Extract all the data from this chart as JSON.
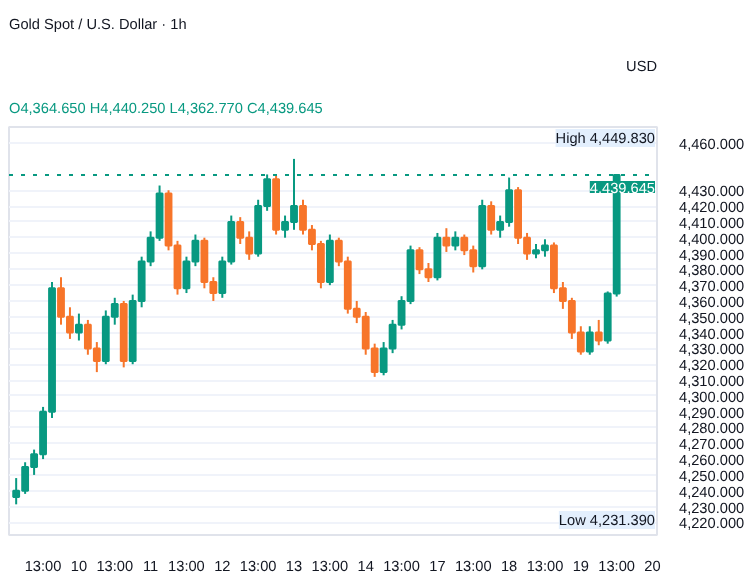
{
  "chart_data": {
    "type": "candlestick",
    "title": "Gold Spot / U.S. Dollar · 1h",
    "subtitle": "O4,364.650 H4,440.250 L4,362.770 C4,439.645",
    "ylabel": "USD",
    "categories": [
      null,
      null,
      null,
      "13:00",
      null,
      null,
      null,
      "10",
      null,
      null,
      null,
      "13:00",
      null,
      null,
      null,
      "11",
      null,
      null,
      null,
      "13:00",
      null,
      null,
      null,
      "12",
      null,
      null,
      null,
      "13:00",
      null,
      null,
      null,
      "13",
      null,
      null,
      null,
      "13:00",
      null,
      null,
      null,
      "14",
      null,
      null,
      null,
      "13:00",
      null,
      null,
      null,
      "17",
      null,
      null,
      null,
      "13:00",
      null,
      null,
      null,
      "18",
      null,
      null,
      null,
      "13:00",
      null,
      null,
      null,
      "19",
      null,
      null,
      null,
      "13:00",
      null,
      null,
      null,
      "20"
    ],
    "ohlc": [
      [
        4236,
        4248,
        4231.39,
        4240
      ],
      [
        4240,
        4258,
        4238,
        4255
      ],
      [
        4255,
        4266,
        4250,
        4263
      ],
      [
        4263,
        4293,
        4260,
        4290
      ],
      [
        4290,
        4372,
        4286,
        4368
      ],
      [
        4368,
        4375,
        4345,
        4350
      ],
      [
        4350,
        4356,
        4336,
        4340
      ],
      [
        4340,
        4352,
        4335,
        4345
      ],
      [
        4345,
        4348,
        4326,
        4330
      ],
      [
        4330,
        4334,
        4315,
        4322
      ],
      [
        4322,
        4354,
        4320,
        4350
      ],
      [
        4350,
        4362,
        4345,
        4358
      ],
      [
        4358,
        4360,
        4318,
        4322
      ],
      [
        4322,
        4364,
        4320,
        4360
      ],
      [
        4360,
        4388,
        4356,
        4385
      ],
      [
        4385,
        4404,
        4382,
        4400
      ],
      [
        4400,
        4433,
        4398,
        4428
      ],
      [
        4428,
        4430,
        4392,
        4395
      ],
      [
        4395,
        4398,
        4364,
        4368
      ],
      [
        4368,
        4388,
        4365,
        4385
      ],
      [
        4385,
        4402,
        4382,
        4398
      ],
      [
        4398,
        4400,
        4368,
        4372
      ],
      [
        4372,
        4375,
        4360,
        4365
      ],
      [
        4365,
        4388,
        4362,
        4385
      ],
      [
        4385,
        4414,
        4383,
        4410
      ],
      [
        4410,
        4413,
        4396,
        4400
      ],
      [
        4400,
        4404,
        4386,
        4390
      ],
      [
        4390,
        4424,
        4388,
        4420
      ],
      [
        4420,
        4440,
        4417,
        4437
      ],
      [
        4437,
        4439,
        4402,
        4405
      ],
      [
        4405,
        4414,
        4400,
        4410
      ],
      [
        4410,
        4449.83,
        4405,
        4420
      ],
      [
        4420,
        4424,
        4402,
        4405
      ],
      [
        4405,
        4408,
        4392,
        4396
      ],
      [
        4396,
        4398,
        4368,
        4372
      ],
      [
        4372,
        4402,
        4370,
        4398
      ],
      [
        4398,
        4400,
        4382,
        4385
      ],
      [
        4385,
        4388,
        4352,
        4355
      ],
      [
        4355,
        4360,
        4346,
        4350
      ],
      [
        4350,
        4353,
        4326,
        4330
      ],
      [
        4330,
        4333,
        4312,
        4315
      ],
      [
        4315,
        4334,
        4313,
        4330
      ],
      [
        4330,
        4348,
        4327,
        4345
      ],
      [
        4345,
        4363,
        4342,
        4360
      ],
      [
        4360,
        4395,
        4358,
        4392
      ],
      [
        4392,
        4394,
        4377,
        4380
      ],
      [
        4380,
        4384,
        4372,
        4375
      ],
      [
        4375,
        4403,
        4373,
        4400
      ],
      [
        4400,
        4406,
        4391,
        4395
      ],
      [
        4395,
        4404,
        4392,
        4400
      ],
      [
        4400,
        4402,
        4389,
        4392
      ],
      [
        4392,
        4395,
        4378,
        4382
      ],
      [
        4382,
        4424,
        4380,
        4420
      ],
      [
        4420,
        4423,
        4402,
        4405
      ],
      [
        4405,
        4414,
        4400,
        4410
      ],
      [
        4410,
        4438,
        4407,
        4430
      ],
      [
        4430,
        4432,
        4396,
        4400
      ],
      [
        4400,
        4403,
        4386,
        4390
      ],
      [
        4390,
        4396,
        4387,
        4392
      ],
      [
        4392,
        4399,
        4388,
        4395
      ],
      [
        4395,
        4397,
        4365,
        4368
      ],
      [
        4368,
        4372,
        4355,
        4360
      ],
      [
        4360,
        4362,
        4336,
        4340
      ],
      [
        4340,
        4344,
        4326,
        4328
      ],
      [
        4328,
        4344,
        4326,
        4340
      ],
      [
        4340,
        4348,
        4332,
        4335
      ],
      [
        4335,
        4366,
        4333,
        4364.65
      ],
      [
        4364.65,
        4440.25,
        4362.77,
        4439.645
      ],
      null,
      null,
      null,
      null
    ],
    "ylim": [
      4212,
      4470
    ],
    "yticks": [
      {
        "value": 4220,
        "label": "4,220.000"
      },
      {
        "value": 4230,
        "label": "4,230.000"
      },
      {
        "value": 4240,
        "label": "4,240.000"
      },
      {
        "value": 4250,
        "label": "4,250.000"
      },
      {
        "value": 4260,
        "label": "4,260.000"
      },
      {
        "value": 4270,
        "label": "4,270.000"
      },
      {
        "value": 4280,
        "label": "4,280.000"
      },
      {
        "value": 4290,
        "label": "4,290.000"
      },
      {
        "value": 4300,
        "label": "4,300.000"
      },
      {
        "value": 4310,
        "label": "4,310.000"
      },
      {
        "value": 4320,
        "label": "4,320.000"
      },
      {
        "value": 4330,
        "label": "4,330.000"
      },
      {
        "value": 4340,
        "label": "4,340.000"
      },
      {
        "value": 4350,
        "label": "4,350.000"
      },
      {
        "value": 4360,
        "label": "4,360.000"
      },
      {
        "value": 4370,
        "label": "4,370.000"
      },
      {
        "value": 4380,
        "label": "4,380.000"
      },
      {
        "value": 4390,
        "label": "4,390.000"
      },
      {
        "value": 4400,
        "label": "4,400.000"
      },
      {
        "value": 4410,
        "label": "4,410.000"
      },
      {
        "value": 4420,
        "label": "4,420.000"
      },
      {
        "value": 4430,
        "label": "4,430.000"
      },
      {
        "value": 4460,
        "label": "4,460.000"
      }
    ],
    "grid": "y",
    "ref_lines": [
      {
        "axis": "y",
        "value": 4439.645,
        "label": "4,439.645",
        "color": "#089981",
        "line_style": "dotted"
      }
    ],
    "annotations": [
      "High 4,449.830",
      "Low 4,231.390"
    ]
  }
}
